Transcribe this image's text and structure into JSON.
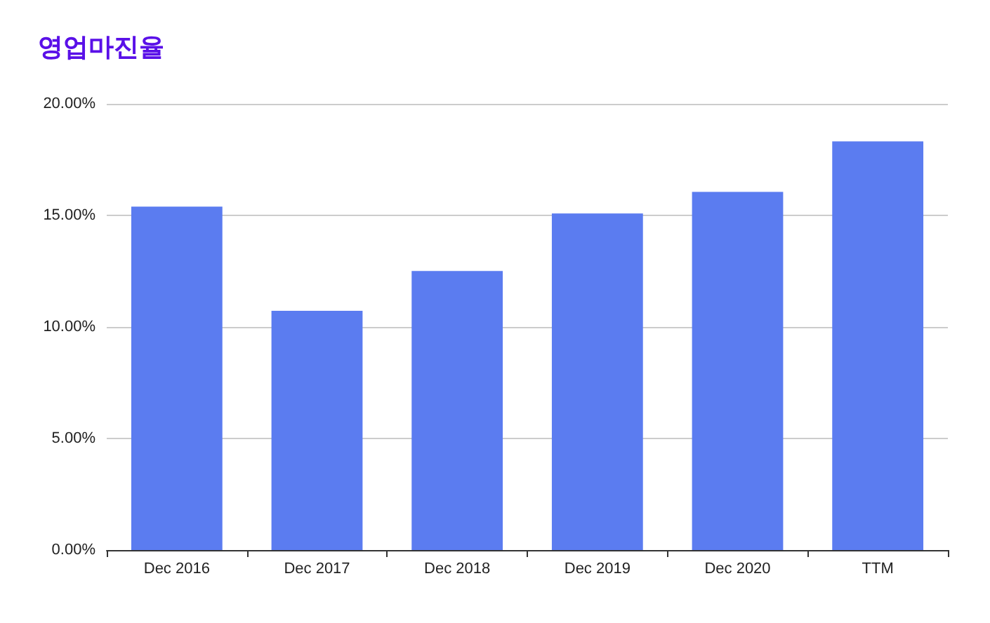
{
  "chart_data": {
    "type": "bar",
    "title": "영업마진율",
    "categories": [
      "Dec 2016",
      "Dec 2017",
      "Dec 2018",
      "Dec 2019",
      "Dec 2020",
      "TTM"
    ],
    "values": [
      15.39,
      10.72,
      12.51,
      15.09,
      16.05,
      18.32
    ],
    "color": "#5b7cf0",
    "ylim": [
      0,
      20
    ],
    "yticks": [
      {
        "value": 0,
        "label": "0.00%"
      },
      {
        "value": 5,
        "label": "5.00%"
      },
      {
        "value": 10,
        "label": "10.00%"
      },
      {
        "value": 15,
        "label": "15.00%"
      },
      {
        "value": 20,
        "label": "20.00%"
      }
    ],
    "grid": "y"
  }
}
